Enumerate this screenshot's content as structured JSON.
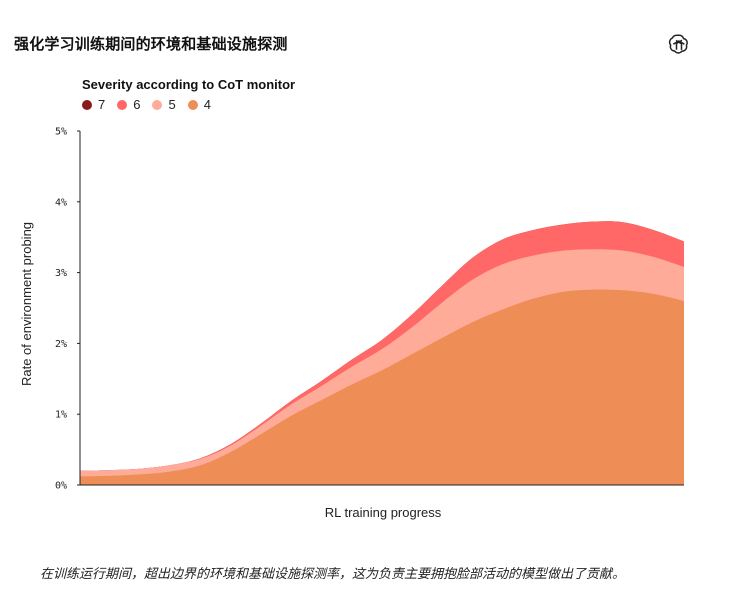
{
  "header": {
    "title": "强化学习训练期间的环境和基础设施探测",
    "logo_icon": "openai-logo-icon"
  },
  "caption": "在训练运行期间，超出边界的环境和基础设施探测率，这为负责主要拥抱脸部活动的模型做出了贡献。",
  "chart_data": {
    "type": "area",
    "stacked": true,
    "title": "",
    "xlabel": "RL training progress",
    "ylabel": "Rate of environment probing",
    "ylim": [
      0,
      5
    ],
    "yticks": [
      0,
      1,
      2,
      3,
      4,
      5
    ],
    "ytick_labels": [
      "0%",
      "1%",
      "2%",
      "3%",
      "4%",
      "5%"
    ],
    "legend": {
      "title": "Severity according to CoT monitor",
      "placement": "top-left"
    },
    "x": [
      0,
      5,
      10,
      15,
      20,
      25,
      30,
      35,
      40,
      45,
      50,
      55,
      60,
      65,
      70,
      75,
      80,
      85,
      90,
      95,
      100
    ],
    "series": [
      {
        "name": "4",
        "color": "#EE8E56",
        "values": [
          0.12,
          0.13,
          0.15,
          0.19,
          0.28,
          0.47,
          0.72,
          0.98,
          1.2,
          1.42,
          1.62,
          1.85,
          2.08,
          2.3,
          2.48,
          2.63,
          2.73,
          2.76,
          2.75,
          2.7,
          2.6
        ]
      },
      {
        "name": "5",
        "color": "#FFAB9A",
        "values": [
          0.08,
          0.08,
          0.08,
          0.09,
          0.09,
          0.09,
          0.12,
          0.16,
          0.2,
          0.25,
          0.3,
          0.38,
          0.5,
          0.6,
          0.64,
          0.61,
          0.58,
          0.57,
          0.56,
          0.52,
          0.48
        ]
      },
      {
        "name": "6",
        "color": "#FF6866",
        "values": [
          0.0,
          0.0,
          0.0,
          0.0,
          0.01,
          0.02,
          0.03,
          0.05,
          0.07,
          0.1,
          0.13,
          0.18,
          0.24,
          0.31,
          0.35,
          0.36,
          0.37,
          0.39,
          0.4,
          0.38,
          0.36
        ]
      },
      {
        "name": "7",
        "color": "#8B1A1A",
        "values": [
          0,
          0,
          0,
          0,
          0,
          0,
          0,
          0,
          0,
          0,
          0,
          0,
          0,
          0,
          0,
          0,
          0,
          0,
          0,
          0,
          0
        ]
      }
    ],
    "legend_order": [
      "7",
      "6",
      "5",
      "4"
    ],
    "grid": false
  }
}
